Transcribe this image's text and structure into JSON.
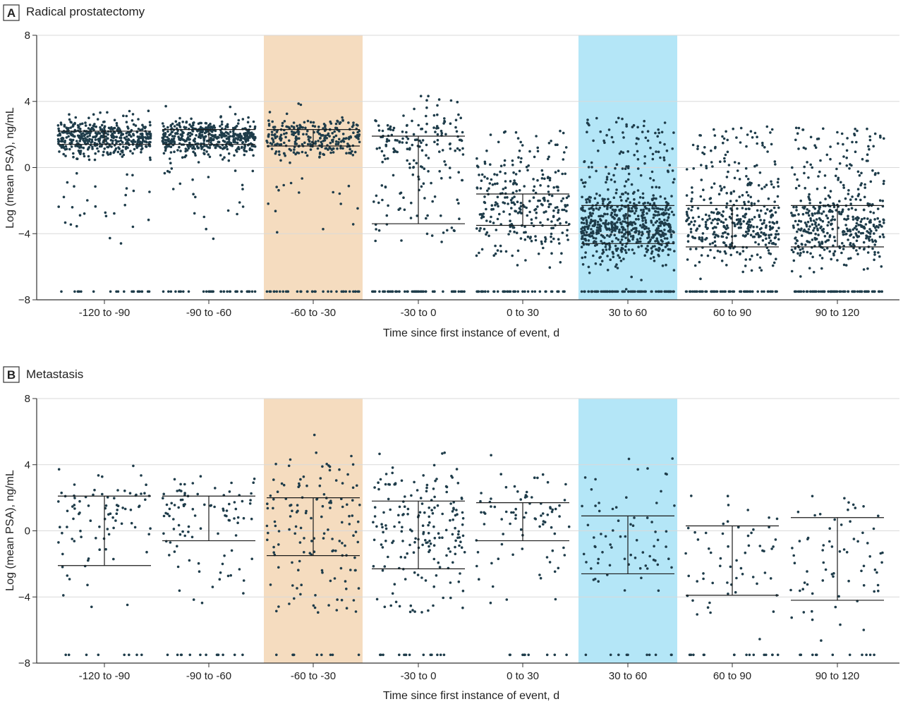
{
  "colors": {
    "highlight_before": "#f5dcbf",
    "highlight_after": "#b4e6f7",
    "point": "#1e3c4a",
    "grid": "#d9d9d9",
    "axis": "#333333",
    "iqr": "#1a1a1a"
  },
  "chart_data": [
    {
      "type": "scatter",
      "panel_label": "A",
      "title": "Radical prostatectomy",
      "xlabel": "Time since first instance of event, d",
      "ylabel": "Log (mean PSA), ng/mL",
      "ylim": [
        -8,
        8
      ],
      "yticks": [
        8,
        4,
        0,
        -4,
        -8
      ],
      "grid": true,
      "categories": [
        "-120 to -90",
        "-90 to -60",
        "-60 to -30",
        "-30 to 0",
        "0 to 30",
        "30 to 60",
        "60 to 90",
        "90 to 120"
      ],
      "highlight": [
        {
          "category": "-60 to -30",
          "color": "highlight_before"
        },
        {
          "category": "30 to 60",
          "color": "highlight_after"
        }
      ],
      "series": [
        {
          "category": "-120 to -90",
          "q1": 1.4,
          "median": 1.9,
          "q3": 2.2,
          "n_points": 500,
          "dist": [
            {
              "center": 1.8,
              "sd": 0.55,
              "weight": 0.89
            },
            {
              "uniform": [
                -5,
                0
              ],
              "weight": 0.05
            },
            {
              "value": -7.5,
              "weight": 0.06
            }
          ]
        },
        {
          "category": "-90 to -60",
          "q1": 1.4,
          "median": 1.9,
          "q3": 2.3,
          "n_points": 520,
          "dist": [
            {
              "center": 1.8,
              "sd": 0.55,
              "weight": 0.89
            },
            {
              "uniform": [
                -5,
                0
              ],
              "weight": 0.04
            },
            {
              "value": -7.5,
              "weight": 0.07
            }
          ]
        },
        {
          "category": "-60 to -30",
          "q1": 1.3,
          "median": 1.9,
          "q3": 2.3,
          "n_points": 320,
          "dist": [
            {
              "center": 1.8,
              "sd": 0.65,
              "weight": 0.86
            },
            {
              "uniform": [
                -5,
                0
              ],
              "weight": 0.05
            },
            {
              "value": -7.5,
              "weight": 0.09
            }
          ]
        },
        {
          "category": "-30 to 0",
          "q1": -3.4,
          "median": 1.6,
          "q3": 1.9,
          "n_points": 240,
          "dist": [
            {
              "center": 1.8,
              "sd": 0.9,
              "weight": 0.55
            },
            {
              "uniform": [
                -4.6,
                0.5
              ],
              "weight": 0.3
            },
            {
              "value": -7.5,
              "weight": 0.15
            }
          ]
        },
        {
          "category": "0 to 30",
          "q1": -3.5,
          "median": -2.4,
          "q3": -1.6,
          "n_points": 330,
          "dist": [
            {
              "center": -2.6,
              "sd": 1.5,
              "weight": 0.74
            },
            {
              "uniform": [
                -1,
                2.5
              ],
              "weight": 0.16
            },
            {
              "value": -7.5,
              "weight": 0.1
            }
          ]
        },
        {
          "category": "30 to 60",
          "q1": -4.6,
          "median": -3.3,
          "q3": -2.3,
          "n_points": 780,
          "dist": [
            {
              "center": -3.5,
              "sd": 1.1,
              "weight": 0.78
            },
            {
              "uniform": [
                -1,
                3
              ],
              "weight": 0.1
            },
            {
              "value": -7.5,
              "weight": 0.12
            }
          ]
        },
        {
          "category": "60 to 90",
          "q1": -4.8,
          "median": -3.6,
          "q3": -2.3,
          "n_points": 460,
          "dist": [
            {
              "center": -3.6,
              "sd": 1.1,
              "weight": 0.68
            },
            {
              "uniform": [
                -1.5,
                2.5
              ],
              "weight": 0.18
            },
            {
              "value": -7.5,
              "weight": 0.14
            }
          ]
        },
        {
          "category": "90 to 120",
          "q1": -4.8,
          "median": -3.7,
          "q3": -2.3,
          "n_points": 520,
          "dist": [
            {
              "center": -3.6,
              "sd": 1.1,
              "weight": 0.68
            },
            {
              "uniform": [
                -1.5,
                2.5
              ],
              "weight": 0.18
            },
            {
              "value": -7.5,
              "weight": 0.14
            }
          ]
        }
      ]
    },
    {
      "type": "scatter",
      "panel_label": "B",
      "title": "Metastasis",
      "xlabel": "Time since first instance of event, d",
      "ylabel": "Log (mean PSA), ng/mL",
      "ylim": [
        -8,
        8
      ],
      "yticks": [
        8,
        4,
        0,
        -4,
        -8
      ],
      "grid": true,
      "categories": [
        "-120 to -90",
        "-90 to -60",
        "-60 to -30",
        "-30 to 0",
        "0 to 30",
        "30 to 60",
        "60 to 90",
        "90 to 120"
      ],
      "highlight": [
        {
          "category": "-60 to -30",
          "color": "highlight_before"
        },
        {
          "category": "30 to 60",
          "color": "highlight_after"
        }
      ],
      "series": [
        {
          "category": "-120 to -90",
          "q1": -2.1,
          "median": 1.0,
          "q3": 2.1,
          "n_points": 95,
          "dist": [
            {
              "center": 1.6,
              "sd": 1.1,
              "weight": 0.62
            },
            {
              "uniform": [
                -4.6,
                0.5
              ],
              "weight": 0.28
            },
            {
              "value": -7.5,
              "weight": 0.1
            }
          ]
        },
        {
          "category": "-90 to -60",
          "q1": -0.6,
          "median": 1.2,
          "q3": 2.1,
          "n_points": 110,
          "dist": [
            {
              "center": 1.6,
              "sd": 1.0,
              "weight": 0.7
            },
            {
              "uniform": [
                -4.6,
                0
              ],
              "weight": 0.2
            },
            {
              "value": -7.5,
              "weight": 0.1
            }
          ]
        },
        {
          "category": "-60 to -30",
          "q1": -1.5,
          "median": 0.6,
          "q3": 2.0,
          "n_points": 150,
          "dist": [
            {
              "center": 1.4,
              "sd": 1.4,
              "weight": 0.62
            },
            {
              "uniform": [
                -5,
                0
              ],
              "weight": 0.28
            },
            {
              "value": -7.5,
              "weight": 0.1
            }
          ]
        },
        {
          "category": "-30 to 0",
          "q1": -2.3,
          "median": 0.4,
          "q3": 1.8,
          "n_points": 200,
          "dist": [
            {
              "center": 1.2,
              "sd": 1.5,
              "weight": 0.58
            },
            {
              "uniform": [
                -5,
                0
              ],
              "weight": 0.32
            },
            {
              "value": -7.5,
              "weight": 0.1
            }
          ]
        },
        {
          "category": "0 to 30",
          "q1": -0.6,
          "median": 1.0,
          "q3": 1.7,
          "n_points": 95,
          "dist": [
            {
              "center": 1.2,
              "sd": 1.1,
              "weight": 0.72
            },
            {
              "uniform": [
                -4.6,
                -0.5
              ],
              "weight": 0.2
            },
            {
              "value": -7.5,
              "weight": 0.08
            }
          ]
        },
        {
          "category": "30 to 60",
          "q1": -2.6,
          "median": -0.9,
          "q3": 0.9,
          "n_points": 80,
          "dist": [
            {
              "center": -0.6,
              "sd": 1.9,
              "weight": 0.86
            },
            {
              "value": -7.5,
              "weight": 0.14
            }
          ]
        },
        {
          "category": "60 to 90",
          "q1": -3.9,
          "median": -2.1,
          "q3": 0.3,
          "n_points": 75,
          "dist": [
            {
              "center": -1.6,
              "sd": 2.0,
              "weight": 0.82
            },
            {
              "value": -7.5,
              "weight": 0.18
            }
          ]
        },
        {
          "category": "90 to 120",
          "q1": -4.2,
          "median": -2.3,
          "q3": 0.8,
          "n_points": 80,
          "dist": [
            {
              "center": -1.6,
              "sd": 2.2,
              "weight": 0.82
            },
            {
              "value": -7.5,
              "weight": 0.18
            }
          ]
        }
      ]
    }
  ]
}
